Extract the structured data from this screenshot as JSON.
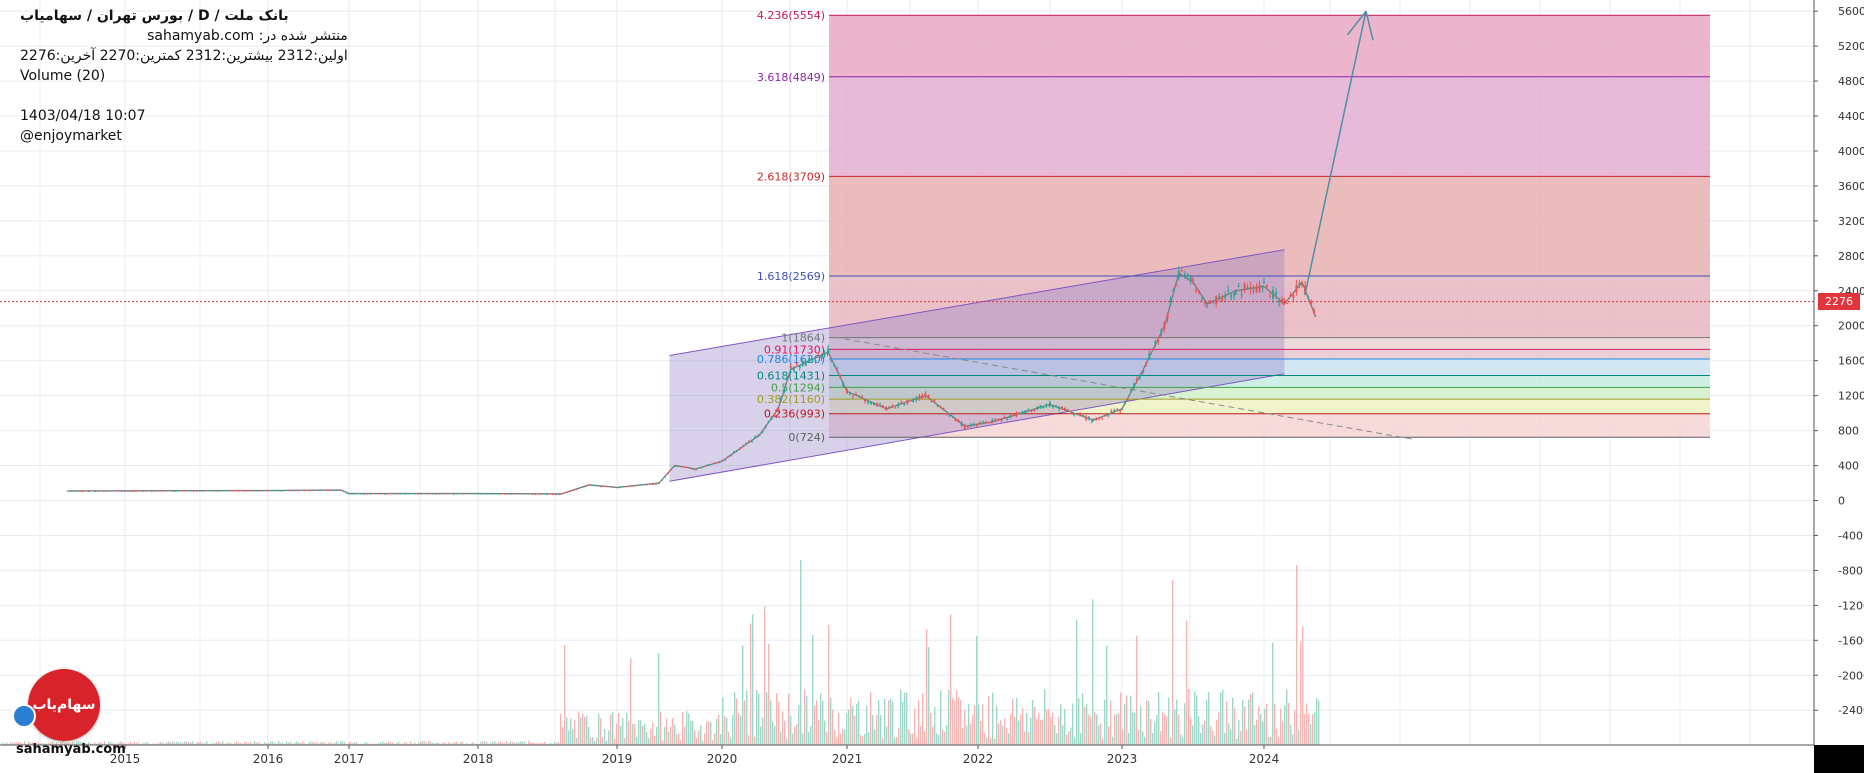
{
  "header": {
    "title": "بانک ملت /  D  /  بورس تهران / سهامیاب",
    "published": "منتشر شده در: sahamyab.com",
    "ohlc": "اولین:2312  بیشترین:2312  کمترین:2270  آخرین:2276",
    "volume": "Volume (20)",
    "timestamp": "1403/04/18 10:07",
    "handle": "@enjoymarket"
  },
  "watermark": {
    "site": "sahamyab.com",
    "logo_text": "سهام‌یاب"
  },
  "colors": {
    "grid": "#e7ecf1",
    "axis_text": "#333333",
    "up": "#26a69a",
    "down": "#ef5350",
    "channel_fill": "#8e7cc3",
    "channel_line": "#7e57c2",
    "arrow": "#4f8fa8",
    "price_line": "#e0353d",
    "vol_up": "#9fd8c8",
    "vol_down": "#f4b6b4"
  },
  "chart_data": {
    "type": "candlestick",
    "y_axis": {
      "range": [
        -2800,
        5700
      ],
      "ticks": [
        5600,
        5200,
        4800,
        4400,
        4000,
        3600,
        3200,
        2800,
        2400,
        2000,
        1600,
        1200,
        800,
        400,
        0,
        -400,
        -800,
        -1200,
        -1600,
        -2000,
        -2400
      ]
    },
    "x_axis": {
      "ticks": [
        "2015",
        "2016",
        "2017",
        "2018",
        "2019",
        "2020",
        "2021",
        "2022",
        "2023",
        "2024"
      ]
    },
    "last_price": 2276,
    "price_series": [
      {
        "date": "2014.6",
        "close": 110
      },
      {
        "date": "2016.0",
        "close": 115
      },
      {
        "date": "2016.9",
        "close": 120
      },
      {
        "date": "2017.0",
        "close": 80
      },
      {
        "date": "2018.0",
        "close": 80
      },
      {
        "date": "2018.6",
        "close": 75
      },
      {
        "date": "2018.8",
        "close": 180
      },
      {
        "date": "2019.0",
        "close": 150
      },
      {
        "date": "2019.4",
        "close": 200
      },
      {
        "date": "2019.55",
        "close": 400
      },
      {
        "date": "2019.75",
        "close": 360
      },
      {
        "date": "2020.0",
        "close": 450
      },
      {
        "date": "2020.3",
        "close": 750
      },
      {
        "date": "2020.45",
        "close": 1050
      },
      {
        "date": "2020.55",
        "close": 1500
      },
      {
        "date": "2020.7",
        "close": 1600
      },
      {
        "date": "2020.85",
        "close": 1700
      },
      {
        "date": "2021.0",
        "close": 1250
      },
      {
        "date": "2021.3",
        "close": 1050
      },
      {
        "date": "2021.6",
        "close": 1200
      },
      {
        "date": "2021.9",
        "close": 850
      },
      {
        "date": "2022.1",
        "close": 900
      },
      {
        "date": "2022.5",
        "close": 1100
      },
      {
        "date": "2022.8",
        "close": 920
      },
      {
        "date": "2023.0",
        "close": 1050
      },
      {
        "date": "2023.15",
        "close": 1500
      },
      {
        "date": "2023.3",
        "close": 2000
      },
      {
        "date": "2023.4",
        "close": 2600
      },
      {
        "date": "2023.5",
        "close": 2500
      },
      {
        "date": "2023.6",
        "close": 2250
      },
      {
        "date": "2023.8",
        "close": 2400
      },
      {
        "date": "2024.0",
        "close": 2450
      },
      {
        "date": "2024.15",
        "close": 2250
      },
      {
        "date": "2024.28",
        "close": 2500
      },
      {
        "date": "2024.38",
        "close": 2100
      }
    ],
    "fibonacci": [
      {
        "label": "4.236(5554)",
        "value": 5554,
        "color": "#c2185b",
        "fill": "#e7a9c2"
      },
      {
        "label": "3.618(4849)",
        "value": 4849,
        "color": "#8e24aa",
        "fill": "#e3aed0"
      },
      {
        "label": "2.618(3709)",
        "value": 3709,
        "color": "#c62828",
        "fill": "#e8b0b0"
      },
      {
        "label": "1.618(2569)",
        "value": 2569,
        "color": "#3f51b5",
        "fill": "#e6b6c0"
      },
      {
        "label": "1(1864)",
        "value": 1864,
        "color": "#757575",
        "fill": "#ead5d5"
      },
      {
        "label": "0.91(1730)",
        "value": 1730,
        "color": "#d81b60",
        "fill": "#e9c7cf"
      },
      {
        "label": "0.786(1620)",
        "value": 1620,
        "color": "#1e88e5",
        "fill": "#cbe3f1"
      },
      {
        "label": "0.618(1431)",
        "value": 1431,
        "color": "#00897b",
        "fill": "#c6ecde"
      },
      {
        "label": "0.5(1294)",
        "value": 1294,
        "color": "#43a047",
        "fill": "#d1f0c9"
      },
      {
        "label": "0.382(1160)",
        "value": 1160,
        "color": "#9e9d24",
        "fill": "#eef2c2"
      },
      {
        "label": "0.236(993)",
        "value": 993,
        "color": "#b71c1c",
        "fill": "#f6d3d3"
      },
      {
        "label": "0(724)",
        "value": 724,
        "color": "#616161",
        "fill": null
      }
    ],
    "channel": {
      "lower": [
        {
          "date": "2019.5",
          "value": 220
        },
        {
          "date": "2024.15",
          "value": 1450
        }
      ],
      "upper": [
        {
          "date": "2019.5",
          "value": 1660
        },
        {
          "date": "2024.15",
          "value": 2870
        }
      ]
    },
    "projection_arrow": [
      {
        "date": "2024.3",
        "value": 2350
      },
      {
        "date": "2024.75",
        "value": 5600
      }
    ],
    "dashed_trend": [
      {
        "date": "2020.9",
        "value": 1870
      },
      {
        "date": "2025.1",
        "value": 700
      }
    ]
  }
}
